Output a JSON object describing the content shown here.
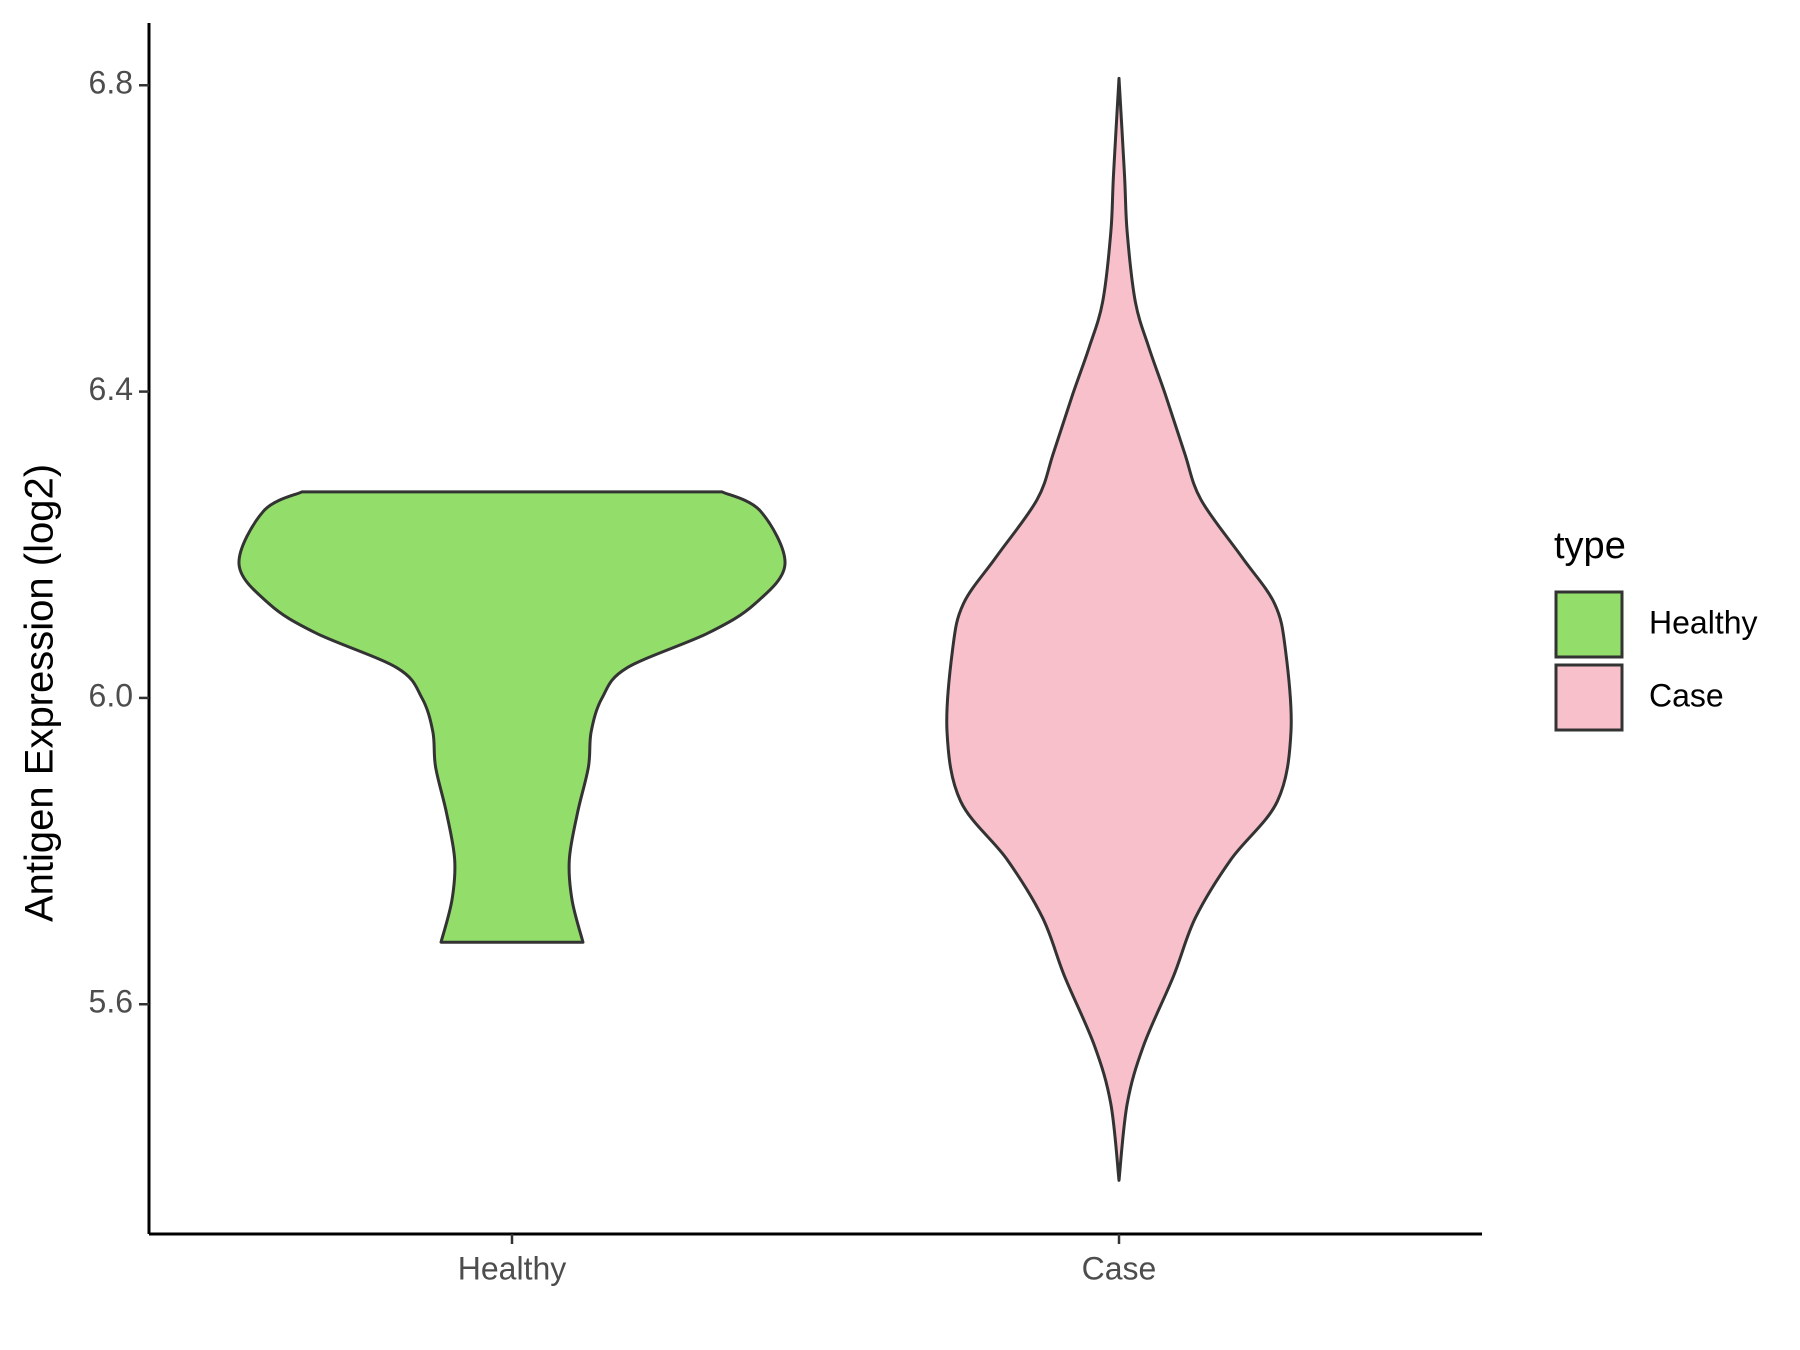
{
  "chart_data": {
    "type": "violin",
    "y_label": "Antigen Expression (log2)",
    "categories": [
      "Healthy",
      "Case"
    ],
    "legend_title": "type",
    "legend": "right",
    "ylim": [
      5.3,
      6.88
    ],
    "yticks": [
      5.6,
      {
        "value": 6,
        "label": "6.0"
      },
      6.4,
      6.8
    ],
    "series": [
      {
        "name": "Healthy",
        "color": "#93dd6b",
        "y": [
          6.269,
          6.244,
          6.175,
          6.123,
          6.085,
          6.039,
          6.0,
          5.956,
          5.91,
          5.85,
          5.789,
          5.736,
          5.681
        ],
        "width": [
          0.77,
          0.91,
          1.0,
          0.89,
          0.72,
          0.42,
          0.33,
          0.29,
          0.28,
          0.24,
          0.21,
          0.22,
          0.26
        ]
      },
      {
        "name": "Case",
        "color": "#f7c0cb",
        "y": [
          6.809,
          6.684,
          6.608,
          6.517,
          6.457,
          6.396,
          6.32,
          6.259,
          6.184,
          6.123,
          6.062,
          5.956,
          5.865,
          5.789,
          5.713,
          5.637,
          5.546,
          5.47,
          5.37
        ],
        "width": [
          0,
          0.02,
          0.03,
          0.06,
          0.11,
          0.17,
          0.24,
          0.3,
          0.45,
          0.57,
          0.61,
          0.63,
          0.58,
          0.41,
          0.28,
          0.2,
          0.09,
          0.03,
          0
        ]
      }
    ]
  }
}
